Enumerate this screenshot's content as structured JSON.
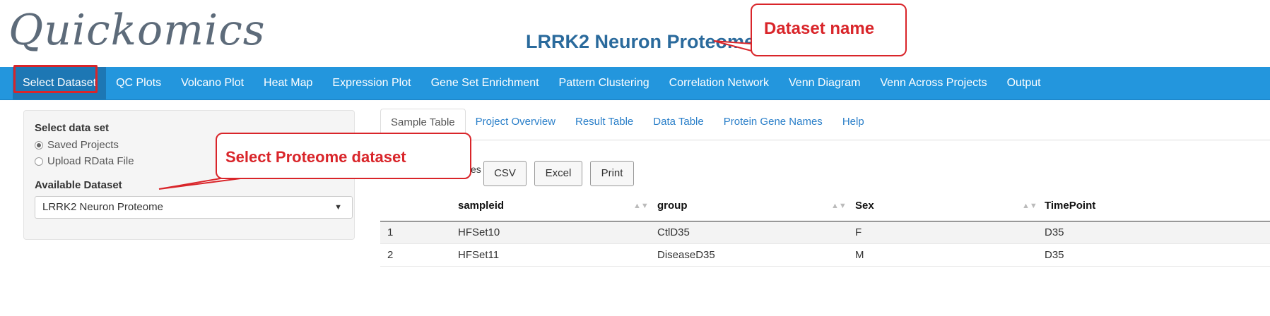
{
  "app": {
    "logo": "Quickomics",
    "dataset_title": "LRRK2 Neuron Proteome"
  },
  "navbar": {
    "items": [
      "Select Dataset",
      "QC Plots",
      "Volcano Plot",
      "Heat Map",
      "Expression Plot",
      "Gene Set Enrichment",
      "Pattern Clustering",
      "Correlation Network",
      "Venn Diagram",
      "Venn Across Projects",
      "Output"
    ]
  },
  "sidebar": {
    "select_label": "Select data set",
    "radio_saved": "Saved Projects",
    "radio_upload": "Upload RData File",
    "available_label": "Available Dataset",
    "selected_dataset": "LRRK2 Neuron Proteome"
  },
  "tabs": {
    "items": [
      "Sample Table",
      "Project Overview",
      "Result Table",
      "Data Table",
      "Protein Gene Names",
      "Help"
    ]
  },
  "toolbar": {
    "partial_label": "es",
    "csv": "CSV",
    "excel": "Excel",
    "print": "Print"
  },
  "table": {
    "columns": [
      "sampleid",
      "group",
      "Sex",
      "TimePoint"
    ],
    "rows": [
      {
        "index": "1",
        "sampleid": "HFSet10",
        "group": "CtlD35",
        "sex": "F",
        "timepoint": "D35"
      },
      {
        "index": "2",
        "sampleid": "HFSet11",
        "group": "DiseaseD35",
        "sex": "M",
        "timepoint": "D35"
      }
    ]
  },
  "annotations": {
    "dataset_name": "Dataset name",
    "select_proteome": "Select Proteome dataset",
    "color": "#d9252a"
  }
}
